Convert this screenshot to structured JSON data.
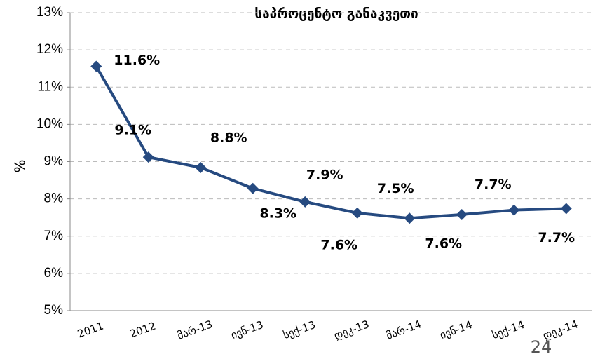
{
  "chart_data": {
    "type": "line",
    "title": "საპროცენტო განაკვეთი",
    "y_label": "%",
    "page_number": "24",
    "categories": [
      "2011",
      "2012",
      "მარ-13",
      "ივნ-13",
      "სექ-13",
      "დეკ-13",
      "მარ-14",
      "ივნ-14",
      "სექ-14",
      "დეკ-14"
    ],
    "series": [
      {
        "name": "საპროცენტო განაკვეთი",
        "color": "#264a80",
        "values": [
          11.56,
          9.12,
          8.84,
          8.28,
          7.92,
          7.62,
          7.48,
          7.58,
          7.7,
          7.74
        ],
        "value_labels": [
          "11.6%",
          "9.1%",
          "8.8%",
          "8.3%",
          "7.9%",
          "7.6%",
          "7.5%",
          "7.6%",
          "7.7%",
          "7.7%"
        ]
      }
    ],
    "ylim": [
      5,
      13
    ],
    "yticks": [
      {
        "value": 5,
        "label": "5%"
      },
      {
        "value": 6,
        "label": "6%"
      },
      {
        "value": 7,
        "label": "7%"
      },
      {
        "value": 8,
        "label": "8%"
      },
      {
        "value": 9,
        "label": "9%"
      },
      {
        "value": 10,
        "label": "10%"
      },
      {
        "value": 11,
        "label": "11%"
      },
      {
        "value": 12,
        "label": "12%"
      },
      {
        "value": 13,
        "label": "13%"
      }
    ],
    "grid": true
  }
}
